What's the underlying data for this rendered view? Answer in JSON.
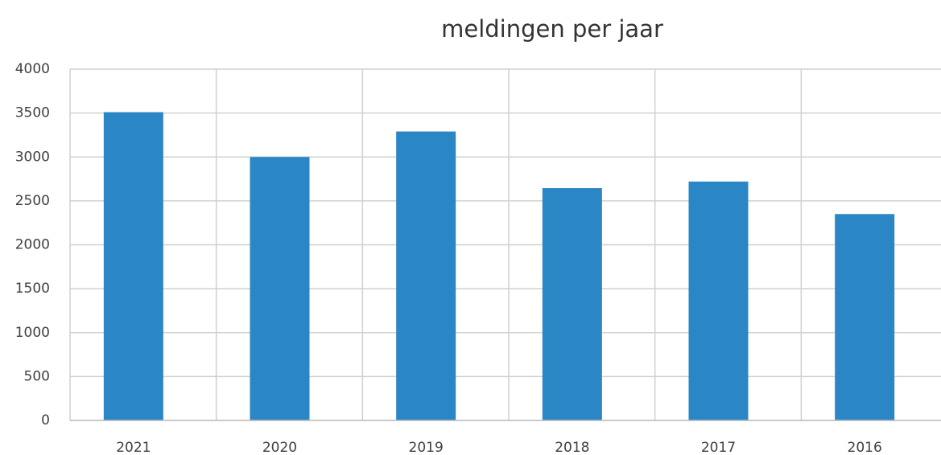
{
  "chart_data": {
    "type": "bar",
    "title": "meldingen per jaar",
    "categories": [
      "2021",
      "2020",
      "2019",
      "2018",
      "2017",
      "2016"
    ],
    "values": [
      3510,
      3000,
      3290,
      2645,
      2720,
      2350
    ],
    "color": "#2a86c5",
    "ylim": [
      0,
      4000
    ],
    "yticks": [
      0,
      500,
      1000,
      1500,
      2000,
      2500,
      3000,
      3500,
      4000
    ],
    "grid": true
  }
}
